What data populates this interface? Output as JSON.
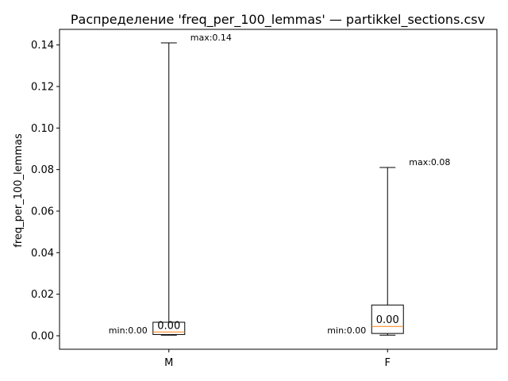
{
  "chart_data": {
    "type": "box",
    "title": "Распределение 'freq_per_100_lemmas' — partikkel_sections.csv",
    "xlabel": "",
    "ylabel": "freq_per_100_lemmas",
    "ylim": [
      -0.0065,
      0.1475
    ],
    "yticks": [
      0.0,
      0.02,
      0.04,
      0.06,
      0.08,
      0.1,
      0.12,
      0.14
    ],
    "ytick_labels": [
      "0.00",
      "0.02",
      "0.04",
      "0.06",
      "0.08",
      "0.10",
      "0.12",
      "0.14"
    ],
    "grid": false,
    "categories": [
      "M",
      "F"
    ],
    "boxes": [
      {
        "category": "M",
        "min": 0.0003,
        "q1": 0.0006,
        "median": 0.0018,
        "q3": 0.0065,
        "max": 0.141,
        "min_label": "min:0.00",
        "max_label": "max:0.14",
        "median_label": "0.00"
      },
      {
        "category": "F",
        "min": 0.0003,
        "q1": 0.0011,
        "median": 0.0045,
        "q3": 0.0148,
        "max": 0.081,
        "min_label": "min:0.00",
        "max_label": "max:0.08",
        "median_label": "0.00"
      }
    ],
    "colors": {
      "box": "#000000",
      "median": "#ff7f0e",
      "whisker": "#000000"
    }
  }
}
